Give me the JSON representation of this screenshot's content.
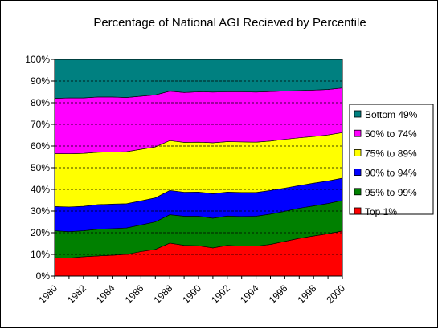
{
  "chart_data": {
    "type": "area",
    "stacked": true,
    "title": "Percentage of National AGI Recieved by Percentile",
    "xlabel": "",
    "ylabel": "",
    "x": [
      1980,
      1981,
      1982,
      1983,
      1984,
      1985,
      1986,
      1987,
      1988,
      1989,
      1990,
      1991,
      1992,
      1993,
      1994,
      1995,
      1996,
      1997,
      1998,
      1999,
      2000
    ],
    "x_tick_labels": [
      "1980",
      "1982",
      "1984",
      "1986",
      "1988",
      "1990",
      "1992",
      "1994",
      "1996",
      "1998",
      "2000"
    ],
    "y_tick_labels": [
      "0%",
      "10%",
      "20%",
      "30%",
      "40%",
      "50%",
      "60%",
      "70%",
      "80%",
      "90%",
      "100%"
    ],
    "ylim": [
      0,
      100
    ],
    "grid": true,
    "legend_position": "right",
    "plot_background": "#C0C0C0",
    "series": [
      {
        "name": "Top 1%",
        "color": "#FF0000",
        "values": [
          8.5,
          8.3,
          8.9,
          9.3,
          9.6,
          10.0,
          11.3,
          12.3,
          15.2,
          14.2,
          14.0,
          13.0,
          14.2,
          13.8,
          13.8,
          14.6,
          16.0,
          17.4,
          18.5,
          19.5,
          20.8
        ]
      },
      {
        "name": "95% to 99%",
        "color": "#008000",
        "values": [
          12.4,
          12.2,
          12.0,
          12.3,
          12.3,
          12.2,
          12.3,
          12.7,
          13.1,
          13.4,
          13.6,
          13.7,
          13.5,
          13.7,
          13.8,
          14.0,
          13.9,
          13.9,
          13.9,
          14.0,
          14.1
        ]
      },
      {
        "name": "90% to 94%",
        "color": "#0000FF",
        "values": [
          11.2,
          11.4,
          11.3,
          11.4,
          11.3,
          11.2,
          11.1,
          11.1,
          11.2,
          11.1,
          11.2,
          11.3,
          11.1,
          11.1,
          11.0,
          10.9,
          10.7,
          10.5,
          10.5,
          10.4,
          10.3
        ]
      },
      {
        "name": "75% to 89%",
        "color": "#FFFF00",
        "values": [
          24.4,
          24.5,
          24.4,
          24.1,
          24.0,
          24.0,
          23.8,
          23.5,
          23.0,
          23.0,
          23.0,
          23.5,
          23.2,
          23.3,
          23.2,
          22.8,
          22.5,
          22.0,
          21.5,
          21.2,
          21.0
        ]
      },
      {
        "name": "50% to 74%",
        "color": "#FF00FF",
        "values": [
          25.5,
          25.8,
          25.6,
          25.5,
          25.4,
          25.0,
          24.5,
          24.0,
          22.8,
          23.0,
          23.2,
          23.4,
          23.0,
          23.1,
          23.1,
          22.8,
          22.3,
          21.8,
          21.4,
          21.0,
          20.6
        ]
      },
      {
        "name": "Bottom 49%",
        "color": "#008080",
        "values": [
          18.0,
          17.8,
          17.8,
          17.4,
          17.4,
          17.6,
          17.0,
          16.4,
          14.7,
          15.3,
          15.0,
          15.1,
          15.0,
          15.0,
          15.1,
          14.9,
          14.6,
          14.4,
          14.2,
          13.9,
          13.2
        ]
      }
    ]
  }
}
